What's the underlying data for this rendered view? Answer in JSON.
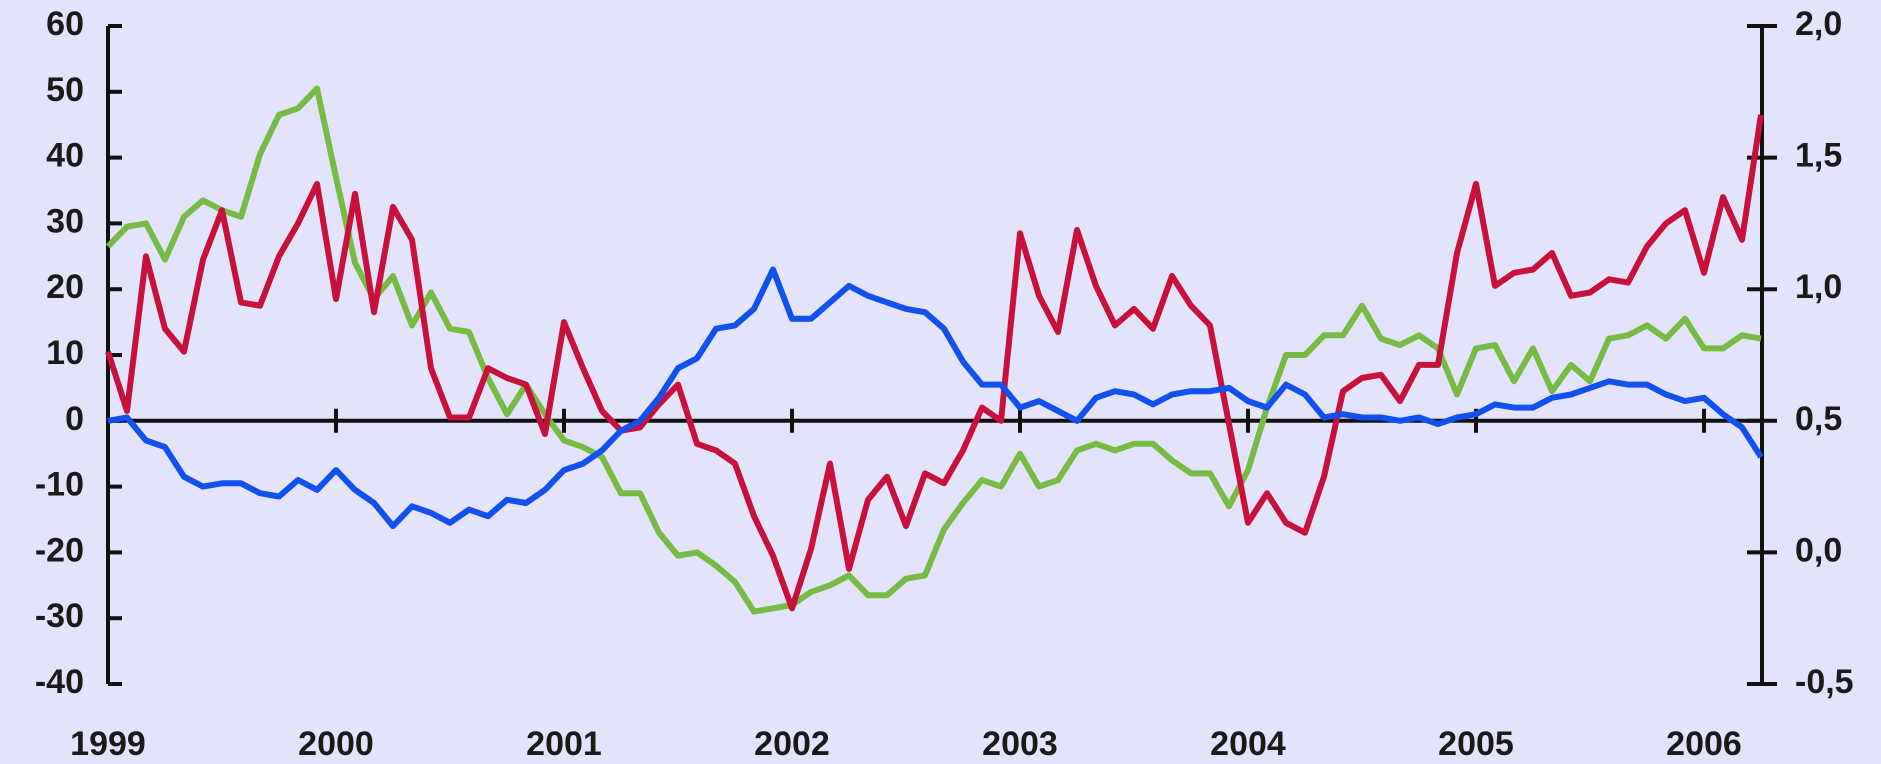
{
  "chart_data": {
    "type": "line",
    "categories": [
      "1999",
      null,
      null,
      null,
      null,
      null,
      null,
      null,
      null,
      null,
      null,
      null,
      "2000",
      null,
      null,
      null,
      null,
      null,
      null,
      null,
      null,
      null,
      null,
      null,
      "2001",
      null,
      null,
      null,
      null,
      null,
      null,
      null,
      null,
      null,
      null,
      null,
      "2002",
      null,
      null,
      null,
      null,
      null,
      null,
      null,
      null,
      null,
      null,
      null,
      "2003",
      null,
      null,
      null,
      null,
      null,
      null,
      null,
      null,
      null,
      null,
      null,
      "2004",
      null,
      null,
      null,
      null,
      null,
      null,
      null,
      null,
      null,
      null,
      null,
      "2005",
      null,
      null,
      null,
      null,
      null,
      null,
      null,
      null,
      null,
      null,
      null,
      "2006",
      null,
      null,
      null
    ],
    "series": [
      {
        "color": "#77bb44",
        "values": [
          26.5,
          29.5,
          30,
          24.5,
          31,
          33.5,
          32,
          31,
          40.5,
          46.5,
          47.5,
          50.5,
          37,
          24,
          18.5,
          22,
          14.5,
          19.5,
          14,
          13.5,
          6.5,
          1,
          5.5,
          1,
          -3,
          -4,
          -5.5,
          -11,
          -11,
          -17,
          -20.5,
          -20,
          -22,
          -24.5,
          -29,
          -28.5,
          -28,
          -26,
          -25,
          -23.5,
          -26.5,
          -26.5,
          -24,
          -23.5,
          -16.5,
          -12.5,
          -9,
          -10,
          -5,
          -10,
          -9,
          -4.5,
          -3.5,
          -4.5,
          -3.5,
          -3.5,
          -6,
          -8,
          -8,
          -13,
          -7.5,
          2,
          10,
          10,
          13,
          13,
          17.5,
          12.5,
          11.5,
          13,
          11,
          4,
          11,
          11.5,
          6,
          11,
          4.5,
          8.5,
          6,
          12.5,
          13,
          14.5,
          12.5,
          15.5,
          11,
          11,
          13,
          12.5
        ]
      },
      {
        "color": "#c8103c",
        "values": [
          10.5,
          1.5,
          25,
          14,
          10.5,
          24.5,
          32,
          18,
          17.5,
          25,
          30,
          36,
          18.5,
          34.5,
          16.5,
          32.5,
          27.5,
          8,
          0.5,
          0.5,
          8,
          6.5,
          5.5,
          -2,
          15,
          8,
          1.5,
          -1.5,
          -1,
          2.5,
          5.5,
          -3.5,
          -4.5,
          -6.5,
          -14.5,
          -20.5,
          -28.5,
          -19.5,
          -6.5,
          -22.5,
          -12,
          -8.5,
          -16,
          -8,
          -9.5,
          -4.5,
          2,
          0,
          28.5,
          19,
          13.5,
          29,
          20.5,
          14.5,
          17,
          14,
          22,
          17.5,
          14.5,
          -0.5,
          -15.5,
          -11,
          -15.5,
          -17,
          -8.5,
          4.5,
          6.5,
          7,
          3,
          8.5,
          8.5,
          25.5,
          36,
          20.5,
          22.5,
          23,
          25.5,
          19,
          19.5,
          21.5,
          21,
          26.5,
          30,
          32,
          22.5,
          34,
          27.5,
          46.5
        ]
      },
      {
        "color": "#1150ee",
        "values": [
          0,
          0.5,
          -3,
          -4,
          -8.5,
          -10,
          -9.5,
          -9.5,
          -11,
          -11.5,
          -9,
          -10.5,
          -7.5,
          -10.5,
          -12.5,
          -16,
          -13,
          -14,
          -15.5,
          -13.5,
          -14.5,
          -12,
          -12.5,
          -10.5,
          -7.5,
          -6.5,
          -4.5,
          -1.5,
          0,
          3.5,
          8,
          9.5,
          14,
          14.5,
          17,
          23,
          15.5,
          15.5,
          18,
          20.5,
          19,
          18,
          17,
          16.5,
          14,
          9,
          5.5,
          5.5,
          2,
          3,
          1.5,
          0,
          3.5,
          4.5,
          4,
          2.5,
          4,
          4.5,
          4.5,
          5,
          3,
          2,
          5.5,
          4,
          0.5,
          1,
          0.5,
          0.5,
          0,
          0.5,
          -0.5,
          0.5,
          1,
          2.5,
          2,
          2,
          3.5,
          4,
          5,
          6,
          5.5,
          5.5,
          4,
          3,
          3.5,
          1,
          -1,
          -5.5
        ]
      }
    ],
    "ylim": [
      -40,
      60
    ],
    "yticks": [
      -40,
      -30,
      -20,
      -10,
      0,
      10,
      20,
      30,
      40,
      50,
      60
    ],
    "y2lim": [
      -0.5,
      2.0
    ],
    "y2ticks": [
      {
        "value": -0.5,
        "label": "-0,5"
      },
      {
        "value": 0,
        "label": "0,0"
      },
      {
        "value": 0.5,
        "label": "0,5"
      },
      {
        "value": 1.0,
        "label": "1,0"
      },
      {
        "value": 1.5,
        "label": "1,5"
      },
      {
        "value": 2.0,
        "label": "2,0"
      }
    ]
  }
}
